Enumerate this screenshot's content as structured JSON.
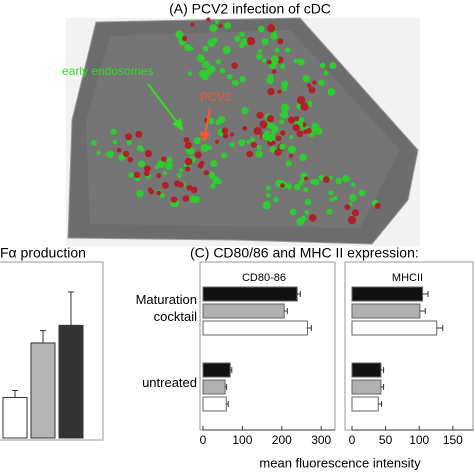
{
  "panel_a": {
    "title": "(A) PCV2 infection of cDC",
    "label_endosomes": "early endosomes",
    "label_pcv2": "PCV2"
  },
  "panel_c": {
    "title": "(C) CD80/86 and MHC II expression:",
    "xlabel": "mean fluorescence intensity"
  },
  "chart_data": [
    {
      "type": "bar",
      "title": "Fα production",
      "categories": [
        null,
        null,
        null
      ],
      "values": [
        23,
        54,
        64
      ],
      "errors": [
        4,
        7,
        19
      ],
      "colors": [
        "#ffffff",
        "#b4b4b4",
        "#333333"
      ],
      "ylim": [
        0,
        100
      ]
    },
    {
      "type": "barh",
      "title": "CD80-86",
      "categories": [
        "Maturation cocktail",
        "untreated"
      ],
      "series": [
        {
          "color": "#111111",
          "values": [
            239,
            69
          ],
          "errors": [
            8,
            4
          ]
        },
        {
          "color": "#b0b0b0",
          "values": [
            206,
            56
          ],
          "errors": [
            8,
            4
          ]
        },
        {
          "color": "#ffffff",
          "values": [
            265,
            59
          ],
          "errors": [
            10,
            5
          ]
        }
      ],
      "xlim": [
        0,
        335
      ],
      "xticks": [
        0,
        100,
        200,
        300
      ]
    },
    {
      "type": "barh",
      "title": "MHCII",
      "series": [
        {
          "color": "#111111",
          "values": [
            105,
            43
          ],
          "errors": [
            8,
            4
          ]
        },
        {
          "color": "#b0b0b0",
          "values": [
            101,
            43
          ],
          "errors": [
            8,
            4
          ]
        },
        {
          "color": "#ffffff",
          "values": [
            126,
            39
          ],
          "errors": [
            9,
            5
          ]
        }
      ],
      "xlim": [
        0,
        180
      ],
      "xticks": [
        0,
        50,
        100,
        150
      ]
    }
  ]
}
